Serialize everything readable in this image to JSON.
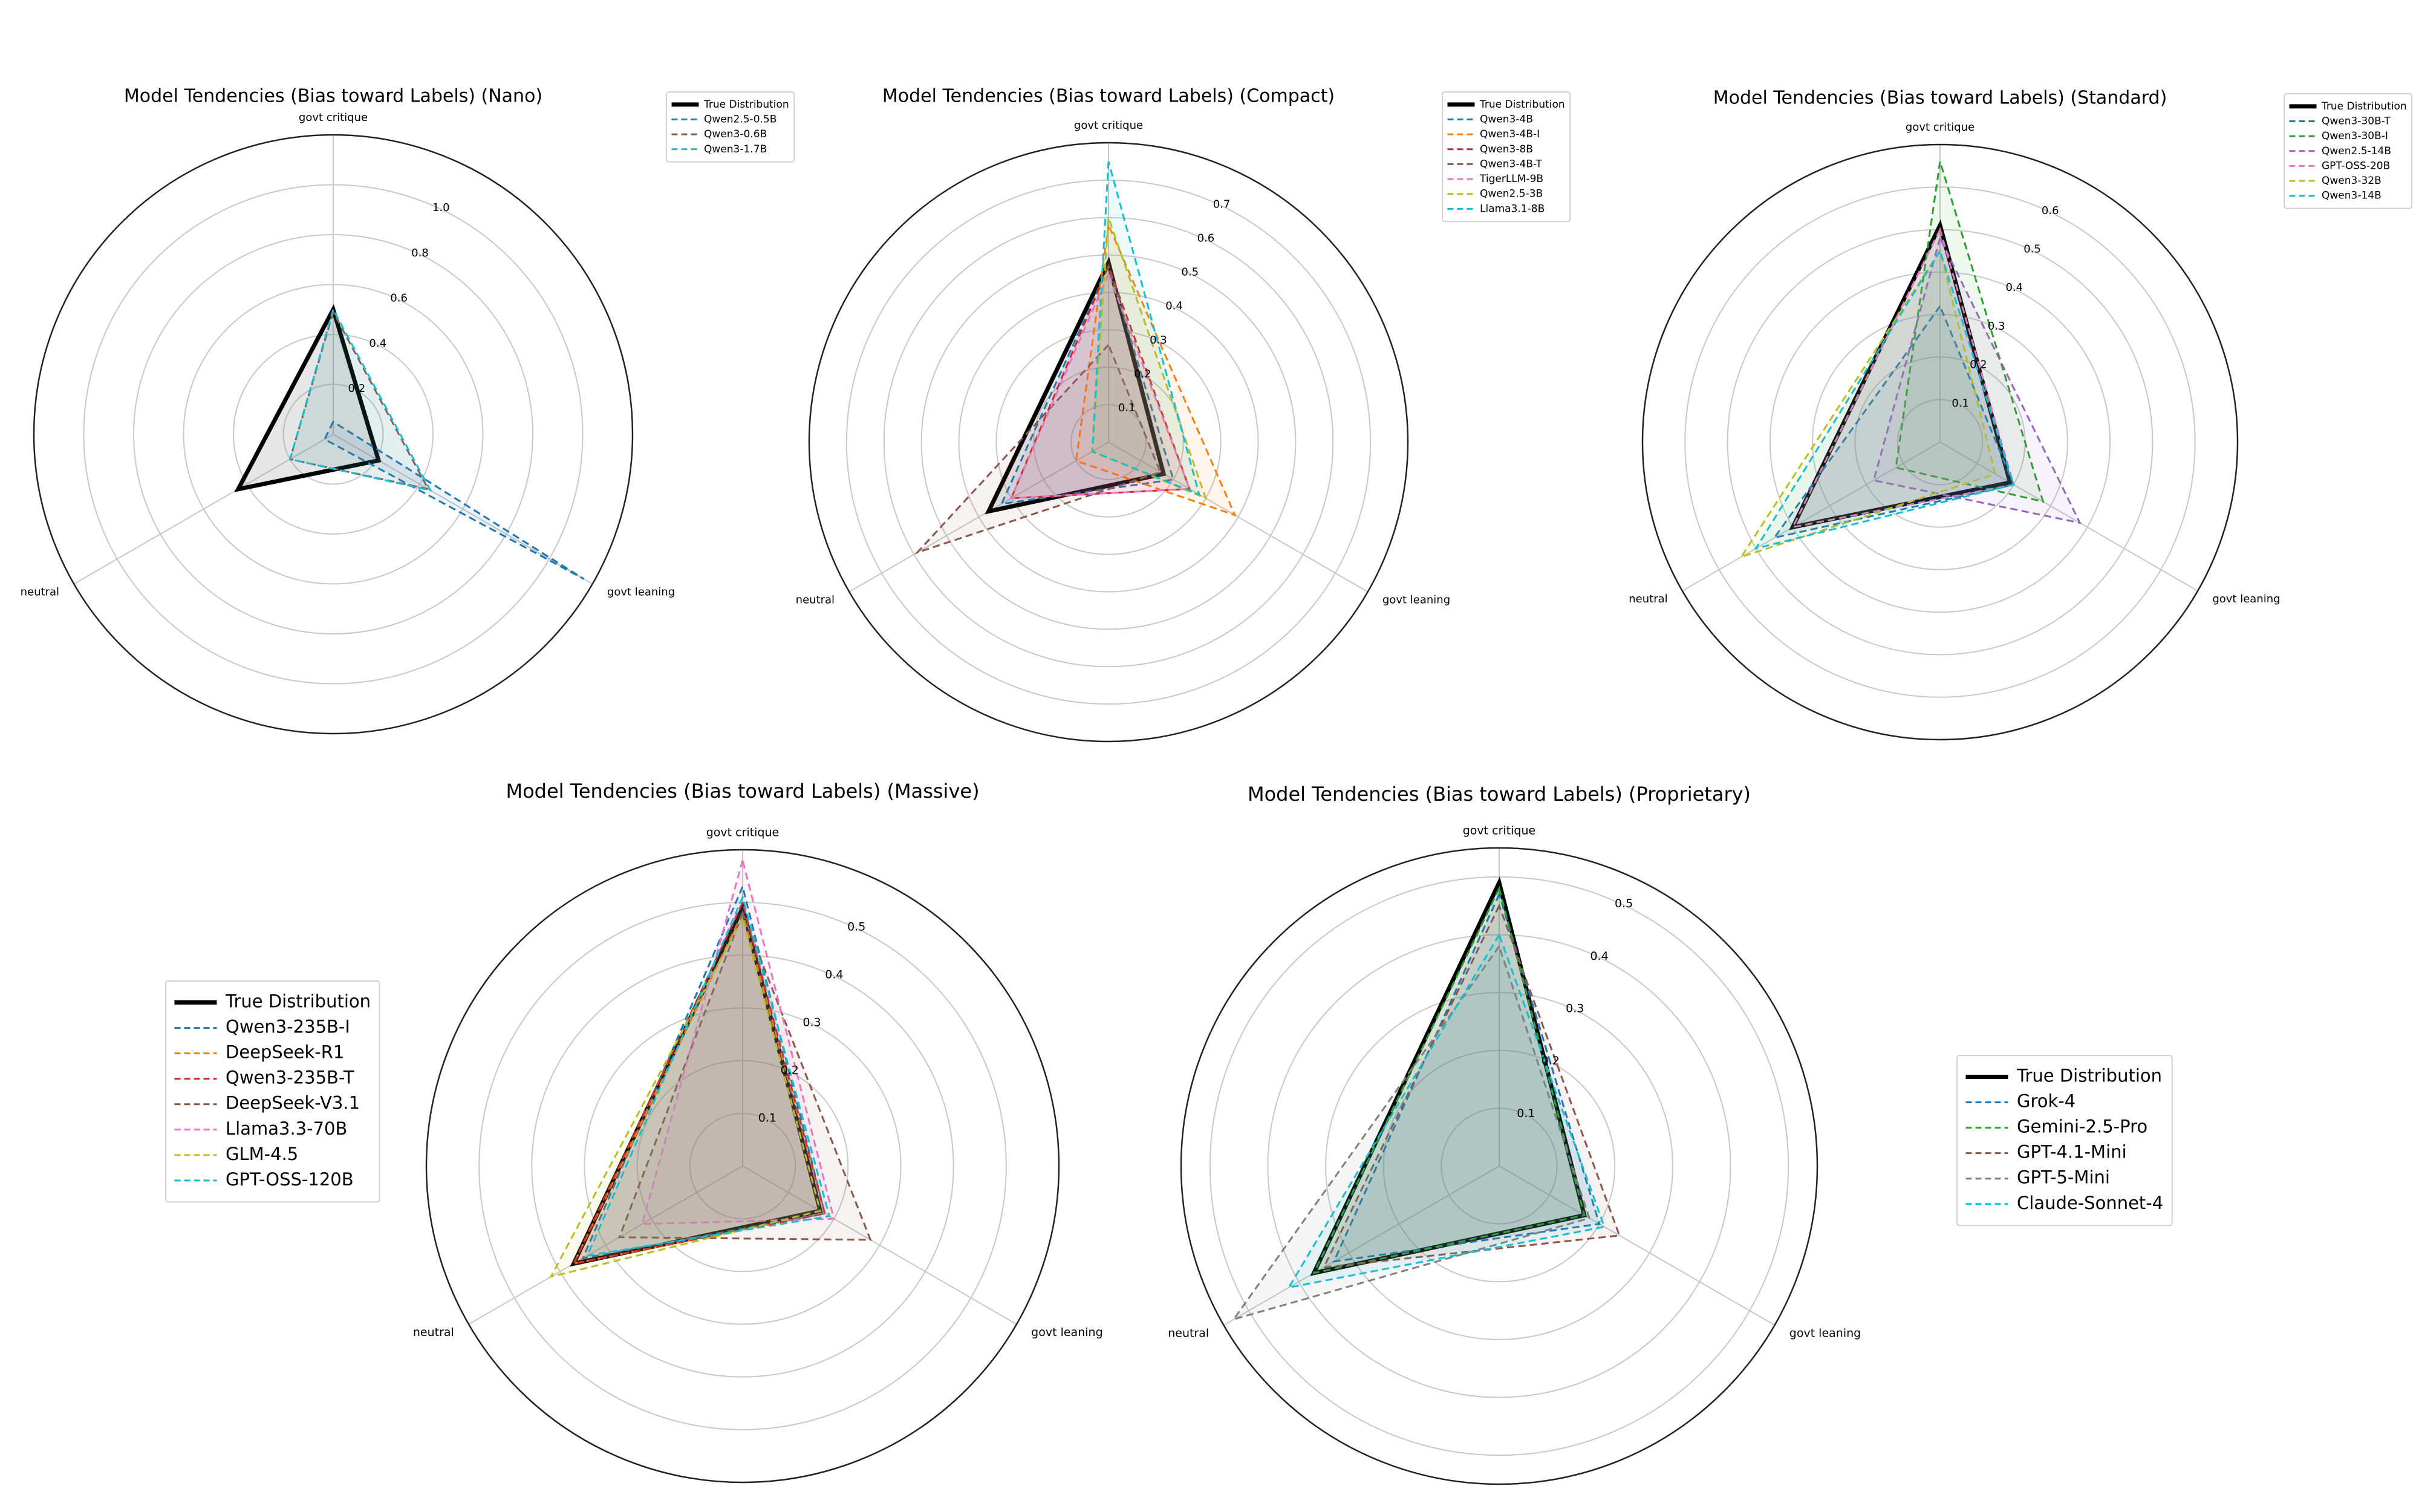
{
  "chart_data": [
    {
      "type": "radar",
      "title": "Model Tendencies (Bias toward Labels) (Nano)",
      "categories": [
        "govt critique",
        "neutral",
        "govt leaning"
      ],
      "rlim": [
        0,
        1.2
      ],
      "rticks": [
        0.2,
        0.4,
        0.6,
        0.8,
        {
          "value": 1,
          "label": "1.0"
        }
      ],
      "grid": true,
      "legend": "upper right",
      "series": [
        {
          "name": "True Distribution",
          "color": "#000000",
          "values": [
            0.5,
            0.44,
            0.21
          ]
        },
        {
          "name": "Qwen2.5-0.5B",
          "color": "#1f77b4",
          "values": [
            0.05,
            0.04,
            1.16
          ]
        },
        {
          "name": "Qwen3-0.6B",
          "color": "#8c564b",
          "values": [
            0.49,
            0.2,
            0.44
          ]
        },
        {
          "name": "Qwen3-1.7B",
          "color": "#17becf",
          "values": [
            0.5,
            0.2,
            0.45
          ]
        }
      ]
    },
    {
      "type": "radar",
      "title": "Model Tendencies (Bias toward Labels) (Compact)",
      "categories": [
        "govt critique",
        "neutral",
        "govt leaning"
      ],
      "rlim": [
        0,
        0.8
      ],
      "rticks": [
        0.1,
        0.2,
        0.3,
        0.4,
        0.5,
        0.6,
        0.7
      ],
      "grid": true,
      "legend": "upper right",
      "series": [
        {
          "name": "True Distribution",
          "color": "#000000",
          "values": [
            0.48,
            0.37,
            0.17
          ]
        },
        {
          "name": "Qwen3-4B",
          "color": "#1f77b4",
          "values": [
            0.47,
            0.33,
            0.2
          ]
        },
        {
          "name": "Qwen3-4B-I",
          "color": "#ff7f0e",
          "values": [
            0.58,
            0.1,
            0.39
          ]
        },
        {
          "name": "Qwen3-8B",
          "color": "#d62728",
          "values": [
            0.47,
            0.3,
            0.25
          ]
        },
        {
          "name": "Qwen3-4B-T",
          "color": "#8c564b",
          "values": [
            0.26,
            0.59,
            0.16
          ]
        },
        {
          "name": "TigerLLM-9B",
          "color": "#e377c2",
          "values": [
            0.45,
            0.3,
            0.25
          ]
        },
        {
          "name": "Qwen2.5-3B",
          "color": "#bcbd22",
          "values": [
            0.6,
            0.05,
            0.3
          ]
        },
        {
          "name": "Llama3.1-8B",
          "color": "#17becf",
          "values": [
            0.75,
            0.05,
            0.28
          ]
        }
      ]
    },
    {
      "type": "radar",
      "title": "Model Tendencies (Bias toward Labels) (Standard)",
      "categories": [
        "govt critique",
        "neutral",
        "govt leaning"
      ],
      "rlim": [
        0,
        0.7
      ],
      "rticks": [
        0.1,
        0.2,
        0.3,
        0.4,
        0.5,
        0.6
      ],
      "grid": true,
      "legend": "upper right",
      "series": [
        {
          "name": "True Distribution",
          "color": "#000000",
          "values": [
            0.51,
            0.4,
            0.19
          ]
        },
        {
          "name": "Qwen3-30B-T",
          "color": "#1f77b4",
          "values": [
            0.32,
            0.45,
            0.2
          ]
        },
        {
          "name": "Qwen3-30B-I",
          "color": "#2ca02c",
          "values": [
            0.66,
            0.12,
            0.28
          ]
        },
        {
          "name": "Qwen2.5-14B",
          "color": "#9467bd",
          "values": [
            0.48,
            0.18,
            0.38
          ]
        },
        {
          "name": "GPT-OSS-20B",
          "color": "#e377c2",
          "values": [
            0.5,
            0.4,
            0.2
          ]
        },
        {
          "name": "Qwen3-32B",
          "color": "#bcbd22",
          "values": [
            0.45,
            0.54,
            0.15
          ]
        },
        {
          "name": "Qwen3-14B",
          "color": "#17becf",
          "values": [
            0.45,
            0.5,
            0.2
          ]
        }
      ]
    },
    {
      "type": "radar",
      "title": "Model Tendencies (Bias toward Labels) (Massive)",
      "categories": [
        "govt critique",
        "neutral",
        "govt leaning"
      ],
      "rlim": [
        0,
        0.6
      ],
      "rticks": [
        0.1,
        0.2,
        0.3,
        0.4,
        0.5
      ],
      "grid": true,
      "legend": "left",
      "series": [
        {
          "name": "True Distribution",
          "color": "#000000",
          "values": [
            0.49,
            0.37,
            0.17
          ]
        },
        {
          "name": "Qwen3-235B-I",
          "color": "#1f77b4",
          "values": [
            0.53,
            0.35,
            0.18
          ]
        },
        {
          "name": "DeepSeek-R1",
          "color": "#ff7f0e",
          "values": [
            0.48,
            0.37,
            0.18
          ]
        },
        {
          "name": "Qwen3-235B-T",
          "color": "#d62728",
          "values": [
            0.5,
            0.37,
            0.18
          ]
        },
        {
          "name": "DeepSeek-V3.1",
          "color": "#8c564b",
          "values": [
            0.48,
            0.27,
            0.28
          ]
        },
        {
          "name": "Llama3.3-70B",
          "color": "#e377c2",
          "values": [
            0.58,
            0.22,
            0.2
          ]
        },
        {
          "name": "GLM-4.5",
          "color": "#bcbd22",
          "values": [
            0.47,
            0.42,
            0.17
          ]
        },
        {
          "name": "GPT-OSS-120B",
          "color": "#17becf",
          "values": [
            0.51,
            0.34,
            0.19
          ]
        }
      ]
    },
    {
      "type": "radar",
      "title": "Model Tendencies (Bias toward Labels) (Proprietary)",
      "categories": [
        "govt critique",
        "neutral",
        "govt leaning"
      ],
      "rlim": [
        0,
        0.55
      ],
      "rticks": [
        0.1,
        0.2,
        0.3,
        0.4,
        0.5
      ],
      "grid": true,
      "legend": "right",
      "series": [
        {
          "name": "True Distribution",
          "color": "#000000",
          "values": [
            0.49,
            0.37,
            0.17
          ]
        },
        {
          "name": "Grok-4",
          "color": "#1f77b4",
          "values": [
            0.47,
            0.33,
            0.2
          ]
        },
        {
          "name": "Gemini-2.5-Pro",
          "color": "#2ca02c",
          "values": [
            0.48,
            0.37,
            0.17
          ]
        },
        {
          "name": "GPT-4.1-Mini",
          "color": "#8c564b",
          "values": [
            0.45,
            0.35,
            0.24
          ]
        },
        {
          "name": "GPT-5-Mini",
          "color": "#7f7f7f",
          "values": [
            0.38,
            0.53,
            0.18
          ]
        },
        {
          "name": "Claude-Sonnet-4",
          "color": "#17becf",
          "values": [
            0.4,
            0.42,
            0.21
          ]
        }
      ]
    }
  ]
}
